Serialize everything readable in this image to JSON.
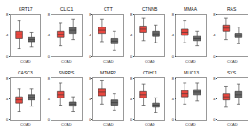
{
  "chart_data": [
    {
      "type": "box",
      "title": "KRT17",
      "x_label": "COAD",
      "ylim": [
        0,
        8
      ],
      "yticks": [
        0,
        4,
        8
      ],
      "tick_labels": "y",
      "grid": false,
      "boxes": [
        {
          "color": "#e8473f",
          "low": 1.5,
          "q1": 3.4,
          "median": 4.1,
          "q3": 4.8,
          "high": 6.8
        },
        {
          "color": "#666666",
          "low": 1.8,
          "q1": 2.8,
          "median": 3.2,
          "q3": 3.6,
          "high": 4.6
        }
      ]
    },
    {
      "type": "box",
      "title": "CLIC1",
      "x_label": "COAD",
      "ylim": [
        0,
        8
      ],
      "yticks": [
        0,
        4,
        8
      ],
      "tick_labels": "y",
      "grid": false,
      "boxes": [
        {
          "color": "#e8473f",
          "low": 2.0,
          "q1": 3.6,
          "median": 4.2,
          "q3": 4.8,
          "high": 6.4
        },
        {
          "color": "#666666",
          "low": 3.2,
          "q1": 4.4,
          "median": 5.0,
          "q3": 5.6,
          "high": 7.2
        }
      ]
    },
    {
      "type": "box",
      "title": "CTT",
      "x_label": "COAD",
      "ylim": [
        0,
        8
      ],
      "yticks": [
        0,
        4,
        8
      ],
      "tick_labels": "y",
      "grid": false,
      "boxes": [
        {
          "color": "#e8473f",
          "low": 2.8,
          "q1": 4.4,
          "median": 5.0,
          "q3": 5.6,
          "high": 7.2
        },
        {
          "color": "#666666",
          "low": 1.2,
          "q1": 2.4,
          "median": 2.9,
          "q3": 3.4,
          "high": 4.8
        }
      ]
    },
    {
      "type": "box",
      "title": "CTNNB",
      "x_label": "COAD",
      "ylim": [
        0,
        8
      ],
      "yticks": [
        0,
        4,
        8
      ],
      "tick_labels": "y",
      "grid": false,
      "boxes": [
        {
          "color": "#e8473f",
          "low": 3.0,
          "q1": 4.6,
          "median": 5.2,
          "q3": 5.8,
          "high": 7.4
        },
        {
          "color": "#666666",
          "low": 2.6,
          "q1": 3.8,
          "median": 4.3,
          "q3": 4.8,
          "high": 6.0
        }
      ]
    },
    {
      "type": "box",
      "title": "MMAA",
      "x_label": "COAD",
      "ylim": [
        0,
        8
      ],
      "yticks": [
        0,
        4,
        8
      ],
      "tick_labels": "y",
      "grid": false,
      "boxes": [
        {
          "color": "#e8473f",
          "low": 2.6,
          "q1": 4.0,
          "median": 4.6,
          "q3": 5.2,
          "high": 6.8
        },
        {
          "color": "#666666",
          "low": 2.0,
          "q1": 3.0,
          "median": 3.4,
          "q3": 3.8,
          "high": 4.8
        }
      ]
    },
    {
      "type": "box",
      "title": "RAS",
      "x_label": "COAD",
      "ylim": [
        0,
        8
      ],
      "yticks": [
        0,
        4,
        8
      ],
      "tick_labels": "y",
      "grid": false,
      "boxes": [
        {
          "color": "#e8473f",
          "low": 3.2,
          "q1": 4.8,
          "median": 5.4,
          "q3": 6.0,
          "high": 7.4
        },
        {
          "color": "#666666",
          "low": 2.4,
          "q1": 3.6,
          "median": 4.0,
          "q3": 4.4,
          "high": 5.6
        }
      ]
    },
    {
      "type": "box",
      "title": "CASC3",
      "x_label": "COAD",
      "ylim": [
        0,
        8
      ],
      "yticks": [
        0,
        4,
        8
      ],
      "tick_labels": "y",
      "grid": false,
      "boxes": [
        {
          "color": "#e8473f",
          "low": 1.6,
          "q1": 3.2,
          "median": 3.8,
          "q3": 4.4,
          "high": 6.0
        },
        {
          "color": "#666666",
          "low": 2.6,
          "q1": 3.8,
          "median": 4.3,
          "q3": 4.8,
          "high": 6.0
        }
      ]
    },
    {
      "type": "box",
      "title": "SNRPS",
      "x_label": "COAD",
      "ylim": [
        0,
        8
      ],
      "yticks": [
        0,
        4,
        8
      ],
      "tick_labels": "y",
      "grid": false,
      "boxes": [
        {
          "color": "#e8473f",
          "low": 2.8,
          "q1": 4.2,
          "median": 4.8,
          "q3": 5.4,
          "high": 7.0
        },
        {
          "color": "#666666",
          "low": 1.6,
          "q1": 2.6,
          "median": 3.0,
          "q3": 3.4,
          "high": 4.4
        }
      ]
    },
    {
      "type": "box",
      "title": "MTMR2",
      "x_label": "COAD",
      "ylim": [
        0,
        8
      ],
      "yticks": [
        0,
        4,
        8
      ],
      "tick_labels": "y",
      "grid": false,
      "boxes": [
        {
          "color": "#e8473f",
          "low": 3.0,
          "q1": 4.6,
          "median": 5.3,
          "q3": 6.0,
          "high": 7.6
        },
        {
          "color": "#666666",
          "low": 1.8,
          "q1": 2.8,
          "median": 3.3,
          "q3": 3.8,
          "high": 5.0
        }
      ]
    },
    {
      "type": "box",
      "title": "CDH11",
      "x_label": "COAD",
      "ylim": [
        0,
        8
      ],
      "yticks": [
        0,
        4,
        8
      ],
      "tick_labels": "y",
      "grid": false,
      "boxes": [
        {
          "color": "#e8473f",
          "low": 2.8,
          "q1": 4.2,
          "median": 4.8,
          "q3": 5.4,
          "high": 6.8
        },
        {
          "color": "#666666",
          "low": 1.4,
          "q1": 2.4,
          "median": 2.8,
          "q3": 3.2,
          "high": 4.2
        }
      ]
    },
    {
      "type": "box",
      "title": "MUC13",
      "x_label": "COAD",
      "ylim": [
        0,
        8
      ],
      "yticks": [
        0,
        4,
        8
      ],
      "tick_labels": "y",
      "grid": false,
      "boxes": [
        {
          "color": "#e8473f",
          "low": 3.0,
          "q1": 4.4,
          "median": 5.0,
          "q3": 5.6,
          "high": 7.0
        },
        {
          "color": "#666666",
          "low": 3.6,
          "q1": 4.8,
          "median": 5.3,
          "q3": 5.8,
          "high": 7.0
        }
      ]
    },
    {
      "type": "box",
      "title": "SYS",
      "x_label": "COAD",
      "ylim": [
        0,
        8
      ],
      "yticks": [
        0,
        4,
        8
      ],
      "tick_labels": "y",
      "grid": false,
      "boxes": [
        {
          "color": "#e8473f",
          "low": 2.4,
          "q1": 3.8,
          "median": 4.4,
          "q3": 5.0,
          "high": 6.4
        },
        {
          "color": "#666666",
          "low": 3.0,
          "q1": 4.2,
          "median": 4.8,
          "q3": 5.4,
          "high": 6.8
        }
      ]
    }
  ]
}
